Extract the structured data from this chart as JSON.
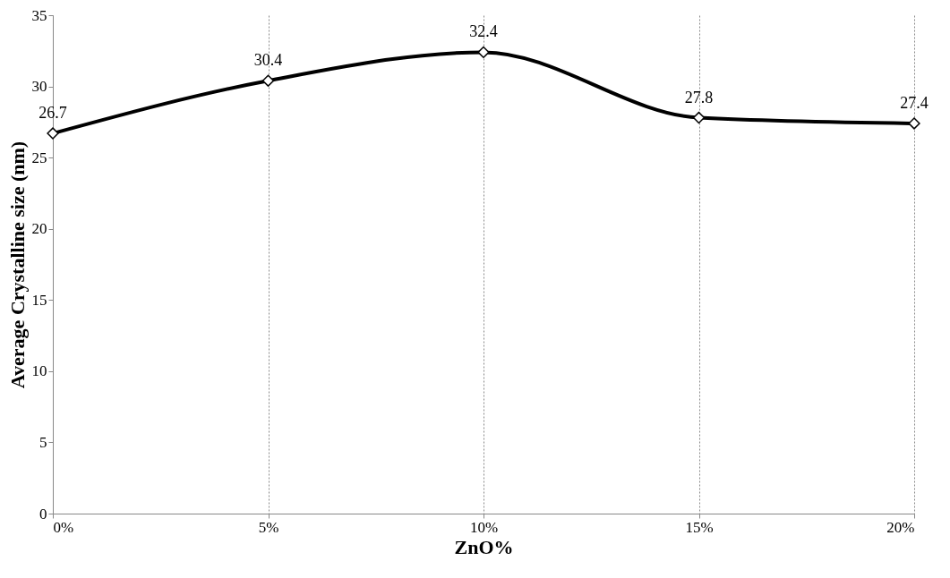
{
  "chart_data": {
    "type": "line",
    "xlabel": "ZnO%",
    "ylabel": "Average Crystalline size (nm)",
    "x": [
      0,
      5,
      10,
      15,
      20
    ],
    "series": [
      {
        "color": "#000000",
        "values": [
          26.7,
          30.4,
          32.4,
          27.8,
          27.4
        ]
      }
    ],
    "xlim": [
      0,
      20
    ],
    "xticks": [
      {
        "value": 0,
        "label": "0%"
      },
      {
        "value": 5,
        "label": "5%"
      },
      {
        "value": 10,
        "label": "10%"
      },
      {
        "value": 15,
        "label": "15%"
      },
      {
        "value": 20,
        "label": "20%"
      }
    ],
    "ylim": [
      0,
      35
    ],
    "yticks": [
      0,
      5,
      10,
      15,
      20,
      25,
      30,
      35
    ],
    "grid": "x",
    "marker": "diamond",
    "line_style": "solid",
    "data_labels": true
  }
}
